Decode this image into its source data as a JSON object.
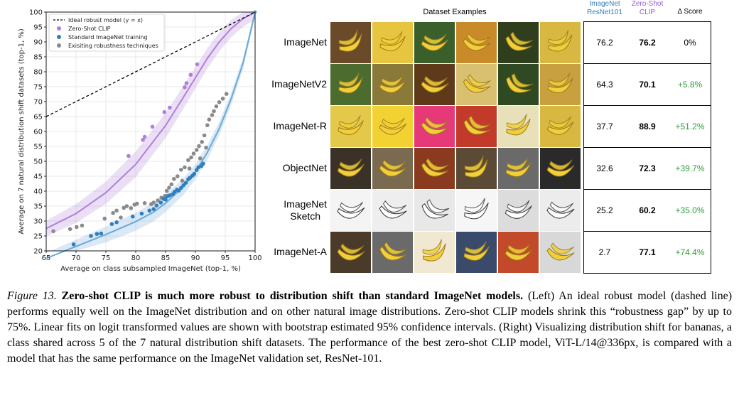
{
  "chart_data": {
    "type": "scatter",
    "xlabel": "Average on class subsampled ImageNet (top-1, %)",
    "ylabel": "Average on 7 natural distribution shift datasets (top-1, %)",
    "xlim": [
      65,
      100
    ],
    "ylim": [
      20,
      100
    ],
    "xticks": [
      65,
      70,
      75,
      80,
      85,
      90,
      95,
      100
    ],
    "yticks": [
      20,
      25,
      30,
      35,
      40,
      45,
      50,
      55,
      60,
      65,
      70,
      75,
      80,
      85,
      90,
      95,
      100
    ],
    "grid": true,
    "legend_position": "top-left",
    "legend": [
      {
        "label": "Ideal robust model (y = x)",
        "marker": "dashed-line",
        "color": "#000000"
      },
      {
        "label": "Zero-Shot CLIP",
        "marker": "dot",
        "color": "#b07fdc"
      },
      {
        "label": "Standard ImageNet training",
        "marker": "dot",
        "color": "#2f7fbf"
      },
      {
        "label": "Exisiting robustness techniques",
        "marker": "dot",
        "color": "#8a8a8a"
      }
    ],
    "series": [
      {
        "name": "Zero-Shot CLIP",
        "color": "#b07fdc",
        "points": [
          [
            78.8,
            51.8
          ],
          [
            81.2,
            57.2
          ],
          [
            81.5,
            58.2
          ],
          [
            82.8,
            61.6
          ],
          [
            84.8,
            66.5
          ],
          [
            85.7,
            68.0
          ],
          [
            88.2,
            74.8
          ],
          [
            88.5,
            76.2
          ],
          [
            89.2,
            79.0
          ],
          [
            90.3,
            82.5
          ]
        ]
      },
      {
        "name": "Standard ImageNet training",
        "color": "#2f7fbf",
        "points": [
          [
            69.6,
            22.2
          ],
          [
            72.5,
            25.0
          ],
          [
            73.5,
            25.7
          ],
          [
            74.2,
            25.8
          ],
          [
            76.0,
            29.0
          ],
          [
            76.8,
            29.6
          ],
          [
            79.5,
            31.5
          ],
          [
            81.0,
            32.5
          ],
          [
            82.3,
            33.5
          ],
          [
            83.0,
            34.0
          ],
          [
            83.5,
            35.2
          ],
          [
            84.2,
            36.2
          ],
          [
            84.7,
            37.4
          ],
          [
            85.0,
            37.2
          ],
          [
            85.3,
            38.3
          ],
          [
            85.7,
            38.6
          ],
          [
            86.2,
            39.0
          ],
          [
            86.5,
            39.8
          ],
          [
            86.9,
            40.5
          ],
          [
            87.2,
            40.2
          ],
          [
            87.6,
            41.1
          ],
          [
            88.0,
            42.0
          ],
          [
            88.4,
            42.8
          ],
          [
            88.8,
            44.0
          ],
          [
            89.1,
            44.5
          ],
          [
            89.5,
            45.2
          ],
          [
            89.8,
            45.8
          ],
          [
            90.2,
            47.1
          ],
          [
            90.5,
            48.0
          ],
          [
            91.0,
            48.4
          ],
          [
            91.3,
            49.2
          ]
        ]
      },
      {
        "name": "Exisiting robustness techniques",
        "color": "#8a8a8a",
        "points": [
          [
            66.2,
            26.6
          ],
          [
            69.0,
            27.3
          ],
          [
            70.1,
            28.0
          ],
          [
            71.0,
            28.5
          ],
          [
            74.8,
            30.8
          ],
          [
            76.2,
            32.7
          ],
          [
            76.8,
            33.5
          ],
          [
            77.5,
            31.2
          ],
          [
            78.0,
            34.4
          ],
          [
            78.5,
            35.0
          ],
          [
            79.2,
            34.3
          ],
          [
            79.8,
            35.5
          ],
          [
            80.2,
            35.8
          ],
          [
            81.5,
            36.0
          ],
          [
            82.6,
            35.7
          ],
          [
            83.0,
            36.2
          ],
          [
            83.7,
            36.9
          ],
          [
            84.3,
            37.8
          ],
          [
            84.9,
            38.4
          ],
          [
            85.2,
            40.1
          ],
          [
            85.6,
            41.2
          ],
          [
            86.0,
            42.3
          ],
          [
            86.4,
            44.1
          ],
          [
            87.0,
            45.0
          ],
          [
            87.6,
            47.2
          ],
          [
            88.2,
            48.0
          ],
          [
            88.8,
            50.4
          ],
          [
            89.3,
            51.3
          ],
          [
            89.7,
            52.6
          ],
          [
            90.2,
            53.8
          ],
          [
            90.6,
            55.1
          ],
          [
            91.1,
            56.5
          ],
          [
            91.5,
            58.7
          ],
          [
            92.0,
            62.1
          ],
          [
            92.3,
            64.0
          ],
          [
            92.8,
            65.5
          ],
          [
            93.1,
            66.8
          ],
          [
            93.5,
            68.4
          ],
          [
            94.0,
            69.8
          ],
          [
            94.6,
            71.0
          ],
          [
            95.2,
            72.6
          ],
          [
            91.8,
            54.6
          ],
          [
            90.8,
            51.0
          ],
          [
            89.0,
            47.6
          ],
          [
            87.8,
            43.5
          ]
        ]
      }
    ],
    "fits": [
      {
        "series": "Zero-Shot CLIP",
        "color": "#b07fdc",
        "curve": [
          [
            65,
            27.5
          ],
          [
            70,
            32.5
          ],
          [
            75,
            39.5
          ],
          [
            80,
            49.0
          ],
          [
            85,
            62.0
          ],
          [
            88,
            71.5
          ],
          [
            90,
            78.0
          ],
          [
            92,
            84.5
          ],
          [
            94,
            90.0
          ],
          [
            96,
            94.5
          ],
          [
            98,
            97.8
          ],
          [
            100,
            100
          ]
        ]
      },
      {
        "series": "Standard ImageNet training",
        "color": "#6aa9d8",
        "curve": [
          [
            65,
            17.5
          ],
          [
            70,
            21.5
          ],
          [
            75,
            25.5
          ],
          [
            80,
            29.8
          ],
          [
            83,
            33.0
          ],
          [
            85,
            36.0
          ],
          [
            88,
            41.5
          ],
          [
            90,
            46.5
          ],
          [
            92,
            53.0
          ],
          [
            94,
            61.0
          ],
          [
            96,
            71.0
          ],
          [
            98,
            83.0
          ],
          [
            100,
            100
          ]
        ]
      }
    ]
  },
  "table": {
    "title": "Dataset Examples",
    "col_resnet": "ImageNet\nResNet101",
    "col_clip": "Zero-Shot\nCLIP",
    "col_delta": "Δ Score",
    "rows": [
      {
        "label": "ImageNet",
        "resnet": "76.2",
        "clip": "76.2",
        "delta": "0%"
      },
      {
        "label": "ImageNetV2",
        "resnet": "64.3",
        "clip": "70.1",
        "delta": "+5.8%"
      },
      {
        "label": "ImageNet-R",
        "resnet": "37.7",
        "clip": "88.9",
        "delta": "+51.2%"
      },
      {
        "label": "ObjectNet",
        "resnet": "32.6",
        "clip": "72.3",
        "delta": "+39.7%"
      },
      {
        "label": "ImageNet\nSketch",
        "resnet": "25.2",
        "clip": "60.2",
        "delta": "+35.0%"
      },
      {
        "label": "ImageNet-A",
        "resnet": "2.7",
        "clip": "77.1",
        "delta": "+74.4%"
      }
    ]
  },
  "caption": {
    "figure_label": "Figure 13.",
    "bold_title": "Zero-shot CLIP is much more robust to distribution shift than standard ImageNet models.",
    "body": "(Left) An ideal robust model (dashed line) performs equally well on the ImageNet distribution and on other natural image distributions. Zero-shot CLIP models shrink this “robustness gap” by up to 75%. Linear fits on logit transformed values are shown with bootstrap estimated 95% confidence intervals. (Right) Visualizing distribution shift for bananas, a class shared across 5 of the 7 natural distribution shift datasets. The performance of the best zero-shot CLIP model, ViT-L/14@336px, is compared with a model that has the same performance on the ImageNet validation set, ResNet-101."
  },
  "colors": {
    "clip_purple": "#9b59d0",
    "resnet_blue": "#2f7fbf",
    "delta_green": "#2e9e3c"
  }
}
